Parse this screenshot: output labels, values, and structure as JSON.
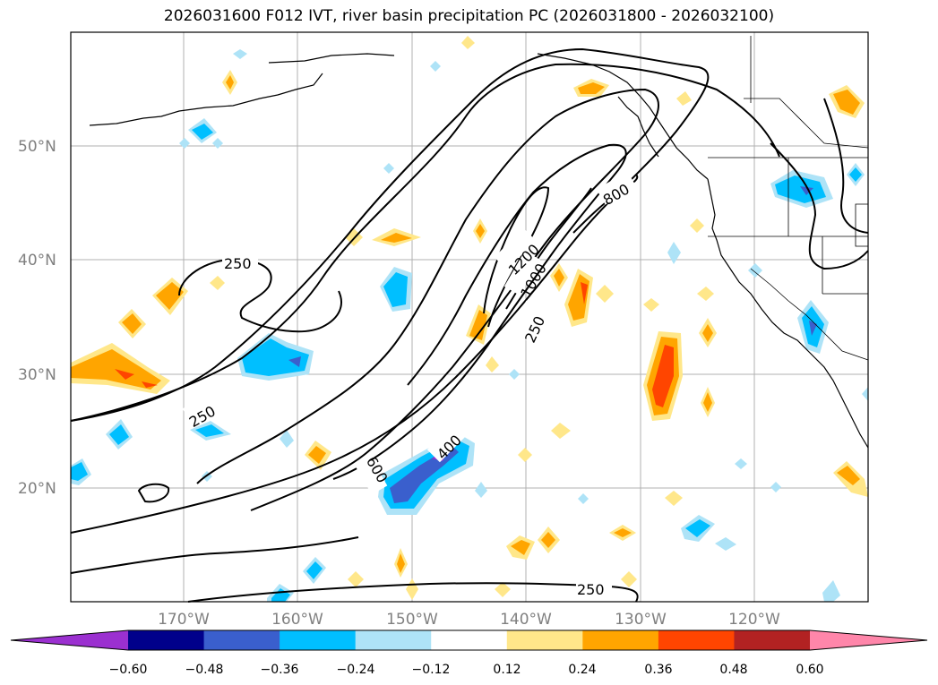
{
  "title": "2026031600 F012 IVT, river basin precipitation PC (2026031800 - 2026032100)",
  "latitude_labels": [
    "50°N",
    "40°N",
    "30°N",
    "20°N"
  ],
  "longitude_labels": [
    "170°W",
    "160°W",
    "150°W",
    "140°W",
    "130°W",
    "120°W"
  ],
  "contour_labels": [
    "250",
    "250",
    "250",
    "250",
    "600",
    "400",
    "800",
    "1000",
    "1200"
  ],
  "colorbar": {
    "tick_labels": [
      "−0.60",
      "−0.48",
      "−0.36",
      "−0.24",
      "−0.12",
      "0.12",
      "0.24",
      "0.36",
      "0.48",
      "0.60"
    ],
    "colors": [
      "#9b30d0",
      "#00008b",
      "#3a5fcd",
      "#00bfff",
      "#aee3f7",
      "#ffffff",
      "#ffe78a",
      "#ffa500",
      "#ff4500",
      "#b22222",
      "#ff86aa"
    ]
  },
  "fill_colors": {
    "orange": "#ffa500",
    "light_orange": "#ffe78a",
    "red": "#ff4500",
    "blue": "#00bfff",
    "light_blue": "#aee3f7",
    "dark_blue": "#3a5fcd",
    "purple": "#9b30d0"
  }
}
